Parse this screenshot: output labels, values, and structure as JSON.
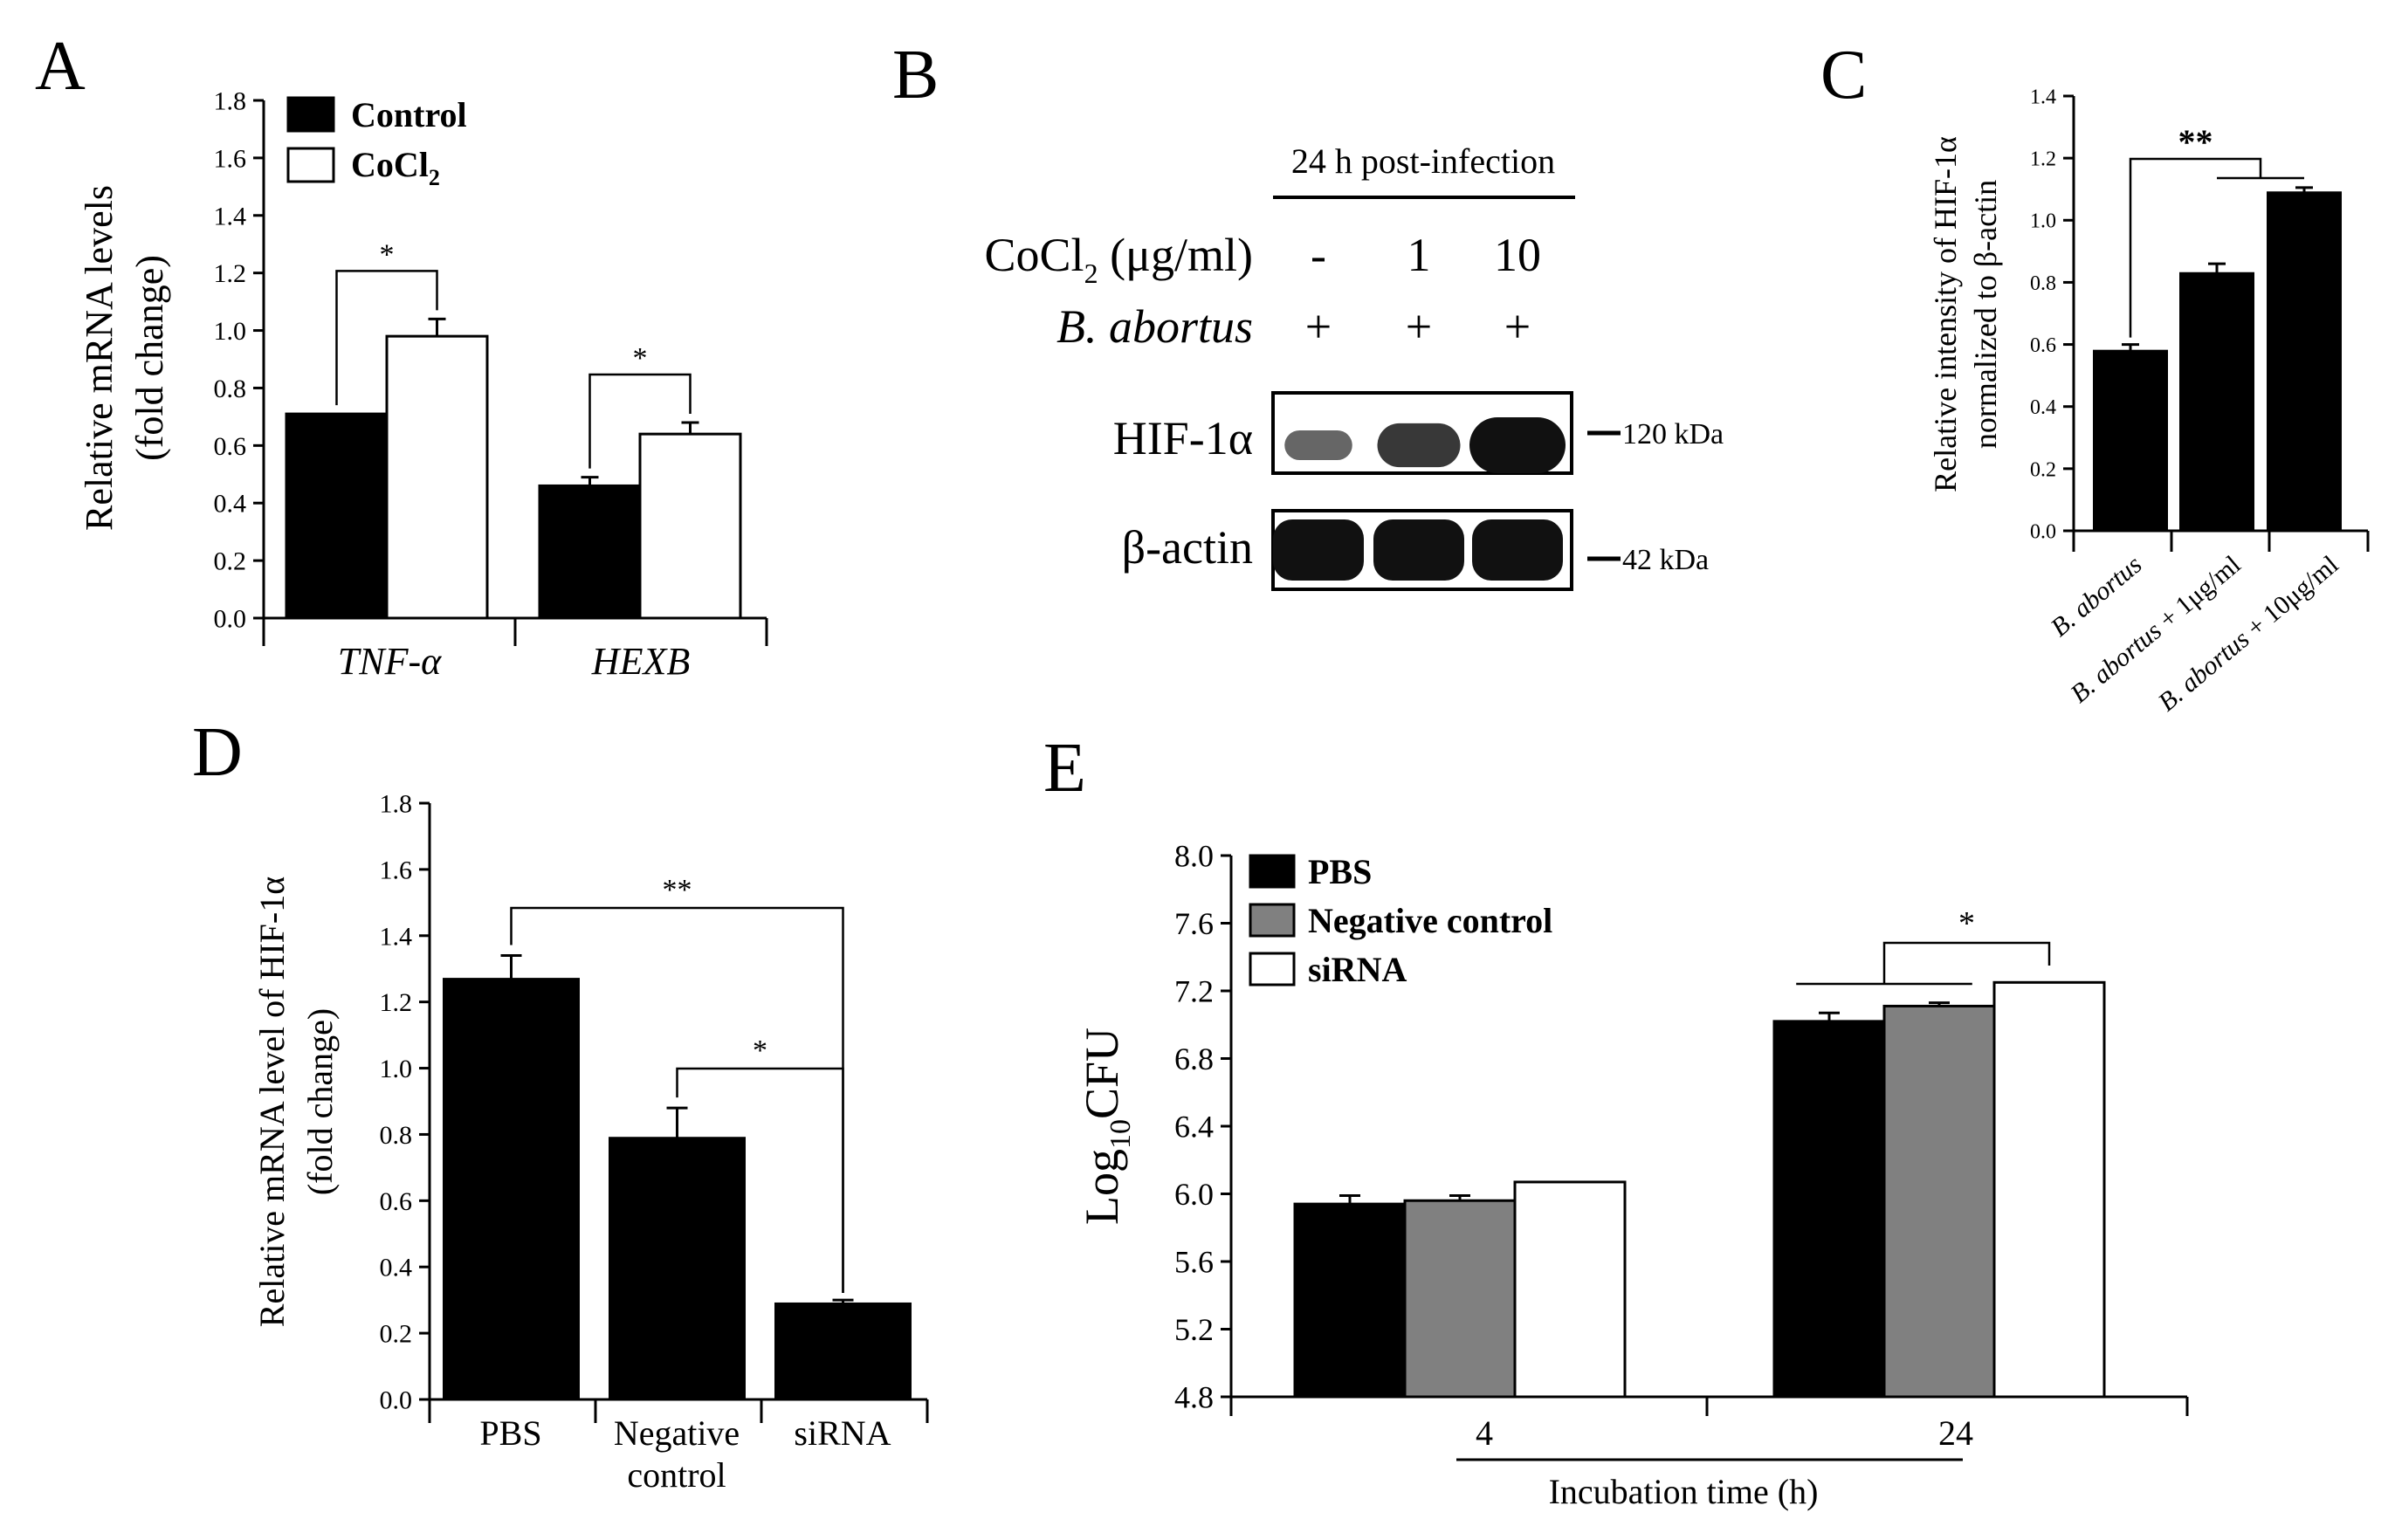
{
  "colors": {
    "black": "#000000",
    "white": "#ffffff",
    "gray": "#808080"
  },
  "panels": {
    "a": {
      "letter": "A"
    },
    "b": {
      "letter": "B"
    },
    "c": {
      "letter": "C"
    },
    "d": {
      "letter": "D"
    },
    "e": {
      "letter": "E"
    }
  },
  "chart_data": [
    {
      "panel": "A",
      "type": "bar",
      "ylabel_line1": "Relative mRNA levels",
      "ylabel_line2": "(fold change)",
      "ylim": [
        0,
        1.8
      ],
      "yticks": [
        "0.0",
        "0.2",
        "0.4",
        "0.6",
        "0.8",
        "1.0",
        "1.2",
        "1.4",
        "1.6",
        "1.8"
      ],
      "categories": [
        "TNF-α",
        "HEXB"
      ],
      "legend": [
        "Control",
        "CoCl",
        "2"
      ],
      "series": [
        {
          "name": "Control",
          "values": [
            0.71,
            0.46
          ],
          "errors": [
            0.0,
            0.03
          ]
        },
        {
          "name": "CoCl2",
          "values": [
            0.98,
            0.64
          ],
          "errors": [
            0.06,
            0.04
          ]
        }
      ],
      "significance": [
        "*",
        "*"
      ]
    },
    {
      "panel": "C",
      "type": "bar",
      "ylabel_line1": "Relative intensity of HIF-1α",
      "ylabel_line2": "normalized to β-actin",
      "ylim": [
        0,
        1.4
      ],
      "yticks": [
        "0.0",
        "0.2",
        "0.4",
        "0.6",
        "0.8",
        "1.0",
        "1.2",
        "1.4"
      ],
      "categories": [
        "B. abortus",
        "B. abortus + 1μg/ml",
        "B. abortus + 10μg/ml"
      ],
      "category_labels": [
        {
          "italic": "B. abortus",
          "rest": ""
        },
        {
          "italic": "B. abortus",
          "rest": " + 1μg/ml"
        },
        {
          "italic": "B. abortus",
          "rest": " + 10μg/ml"
        }
      ],
      "values": [
        0.58,
        0.83,
        1.09
      ],
      "errors": [
        0.02,
        0.03,
        0.015
      ],
      "significance": [
        "**"
      ]
    },
    {
      "panel": "D",
      "type": "bar",
      "ylabel_line1": "Relative mRNA level of HIF-1α",
      "ylabel_line2": "(fold change)",
      "ylim": [
        0,
        1.8
      ],
      "yticks": [
        "0.0",
        "0.2",
        "0.4",
        "0.6",
        "0.8",
        "1.0",
        "1.2",
        "1.4",
        "1.6",
        "1.8"
      ],
      "categories": [
        "PBS",
        "Negative control",
        "siRNA"
      ],
      "category_lines": [
        [
          "PBS"
        ],
        [
          "Negative",
          "control"
        ],
        [
          "siRNA"
        ]
      ],
      "values": [
        1.27,
        0.79,
        0.29
      ],
      "errors": [
        0.07,
        0.09,
        0.01
      ],
      "significance": [
        "**",
        "*"
      ]
    },
    {
      "panel": "E",
      "type": "bar",
      "ylabel": "Log",
      "ylabel_sub": "10",
      "ylabel_tail": "CFU",
      "xlabel": "Incubation time (h)",
      "ylim": [
        4.8,
        8.0
      ],
      "yticks": [
        "4.8",
        "5.2",
        "5.6",
        "6.0",
        "6.4",
        "6.8",
        "7.2",
        "7.6",
        "8.0"
      ],
      "categories": [
        "4",
        "24"
      ],
      "legend": [
        "PBS",
        "Negative control",
        "siRNA"
      ],
      "series": [
        {
          "name": "PBS",
          "values": [
            5.94,
            7.02
          ],
          "errors": [
            0.05,
            0.05
          ]
        },
        {
          "name": "Negative control",
          "values": [
            5.96,
            7.11
          ],
          "errors": [
            0.03,
            0.02
          ]
        },
        {
          "name": "siRNA",
          "values": [
            6.07,
            7.25
          ],
          "errors": [
            0.0,
            0.0
          ]
        }
      ],
      "significance": [
        "*"
      ]
    }
  ],
  "blot": {
    "timepoint": "24 h post-infection",
    "cocl2_label": "CoCl",
    "cocl2_sub": "2",
    "cocl2_unit": " (μg/ml)",
    "species_label": "B. abortus",
    "doses": [
      "-",
      "1",
      "10"
    ],
    "infection": [
      "+",
      "+",
      "+"
    ],
    "lanes": 3,
    "hif_label": "HIF-1α",
    "actin_label": "β-actin",
    "hif_marker": "120 kDa",
    "actin_marker": "42 kDa",
    "hif_band_intensity": [
      0.35,
      0.7,
      1.0
    ],
    "actin_band_intensity": [
      1.0,
      1.0,
      1.0
    ]
  }
}
